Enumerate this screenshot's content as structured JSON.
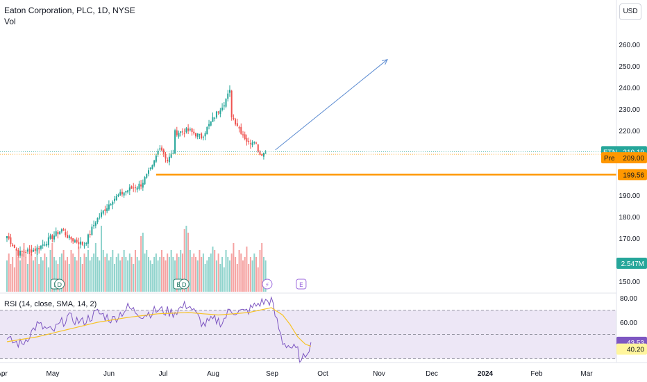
{
  "header": {
    "title": "Eaton Corporation, PLC, 1D, NYSE",
    "volume_label": "Vol",
    "currency": "USD",
    "rsi_label": "RSI (14, close, SMA, 14, 2)"
  },
  "colors": {
    "up": "#26a69a",
    "down": "#ef5350",
    "vol_up": "#8fd3cc",
    "vol_down": "#f5a3a2",
    "support": "#ff9800",
    "arrow": "#5b8bd1",
    "rsi_line": "#7e57c2",
    "rsi_ma": "#f7c325",
    "rsi_band": "#ede7f6",
    "axis_text": "#131722",
    "grid_dash": "#787b86"
  },
  "chart_data": [
    {
      "type": "candlestick",
      "title": "Eaton Corporation, PLC, 1D, NYSE",
      "ylim": [
        145,
        265
      ],
      "y_ticks": [
        "260.00",
        "250.00",
        "240.00",
        "230.00",
        "220.00",
        "210.00",
        "190.00",
        "180.00",
        "170.00",
        "160.00",
        "150.00"
      ],
      "x_ticks": [
        "Apr",
        "May",
        "Jun",
        "Jul",
        "Aug",
        "Sep",
        "Oct",
        "Nov",
        "Dec",
        "2024",
        "Feb",
        "Mar"
      ],
      "waypoints": [
        {
          "date": "2023-03-29",
          "price": 171
        },
        {
          "date": "2023-04-06",
          "price": 163
        },
        {
          "date": "2023-04-20",
          "price": 165
        },
        {
          "date": "2023-05-01",
          "price": 170
        },
        {
          "date": "2023-05-09",
          "price": 174
        },
        {
          "date": "2023-05-15",
          "price": 170
        },
        {
          "date": "2023-05-25",
          "price": 167
        },
        {
          "date": "2023-06-02",
          "price": 178
        },
        {
          "date": "2023-06-15",
          "price": 188
        },
        {
          "date": "2023-06-26",
          "price": 192
        },
        {
          "date": "2023-07-06",
          "price": 195
        },
        {
          "date": "2023-07-14",
          "price": 203
        },
        {
          "date": "2023-07-20",
          "price": 213
        },
        {
          "date": "2023-07-26",
          "price": 206
        },
        {
          "date": "2023-07-31",
          "price": 210
        },
        {
          "date": "2023-08-01",
          "price": 219
        },
        {
          "date": "2023-08-10",
          "price": 220
        },
        {
          "date": "2023-08-21",
          "price": 217
        },
        {
          "date": "2023-08-31",
          "price": 228
        },
        {
          "date": "2023-09-06",
          "price": 233
        },
        {
          "date": "2023-09-11",
          "price": 238
        },
        {
          "date": "2023-09-12",
          "price": 227
        },
        {
          "date": "2023-09-18",
          "price": 221
        },
        {
          "date": "2023-09-25",
          "price": 214
        },
        {
          "date": "2023-09-28",
          "price": 216
        },
        {
          "date": "2023-10-03",
          "price": 209
        },
        {
          "date": "2023-10-06",
          "price": 210
        }
      ],
      "volume_ratios": [
        0.45,
        0.55,
        0.4,
        0.5,
        0.35,
        0.6,
        0.5,
        0.45,
        0.55,
        0.7,
        0.5,
        0.4,
        0.6,
        0.55,
        0.45,
        0.5,
        0.65,
        0.4,
        0.5,
        0.45,
        0.55,
        0.5,
        0.35,
        0.6,
        0.7,
        0.5,
        0.45,
        0.4,
        0.5,
        0.55,
        0.6,
        0.45,
        0.5,
        0.4,
        0.6,
        0.55,
        0.5,
        0.45,
        0.65,
        0.5,
        0.4,
        0.55,
        0.5,
        0.6,
        0.45,
        0.5,
        0.55,
        0.7,
        0.5,
        0.45,
        0.95,
        0.6,
        0.5,
        0.55,
        0.45,
        0.5,
        0.6,
        0.4,
        0.5,
        0.55,
        0.45,
        0.5,
        0.6,
        0.5,
        0.45,
        0.55,
        0.5,
        0.4,
        0.6,
        0.5,
        0.45,
        0.8,
        0.85,
        0.55,
        0.6,
        0.5,
        0.45,
        0.4,
        0.5,
        0.55,
        0.45,
        0.5,
        0.6,
        0.5,
        0.45,
        0.55,
        0.5,
        0.6,
        0.5,
        0.45,
        0.55,
        0.5,
        0.6,
        0.55,
        0.9,
        0.95,
        0.85,
        0.6,
        0.5,
        0.55,
        0.5,
        0.45,
        0.6,
        0.5,
        0.55,
        0.4,
        0.45,
        0.5,
        0.55,
        0.65,
        0.6
      ],
      "current_price": {
        "symbol": "ETN",
        "value": "210.19"
      },
      "premarket": {
        "label": "Pre",
        "value": "209.00"
      },
      "support_level": {
        "value": "199.56",
        "start_date": "2023-07-18"
      },
      "projection_arrow": {
        "from": {
          "date": "2023-10-06",
          "price": 211
        },
        "to": {
          "date": "2023-11-01",
          "price": 253
        }
      },
      "volume_value": "2.547M",
      "earnings_markers": [
        {
          "date": "2023-05-02",
          "label": "E"
        },
        {
          "date": "2023-05-04",
          "label": "D"
        },
        {
          "date": "2023-08-01",
          "label": "E"
        },
        {
          "date": "2023-08-04",
          "label": "D"
        },
        {
          "date": "2023-10-05",
          "label": "⚡"
        },
        {
          "date": "2023-10-31",
          "label": "E"
        }
      ]
    },
    {
      "type": "line",
      "title": "RSI (14, close, SMA, 14, 2)",
      "ylim": [
        20,
        83
      ],
      "y_ticks": [
        "80.00",
        "60.00"
      ],
      "band": [
        30,
        70
      ],
      "rsi_value": "43.53",
      "rsi_ma_value": "40.20",
      "rsi_waypoints": [
        [
          0,
          45
        ],
        [
          8,
          42
        ],
        [
          16,
          58
        ],
        [
          24,
          52
        ],
        [
          32,
          64
        ],
        [
          40,
          60
        ],
        [
          48,
          68
        ],
        [
          56,
          62
        ],
        [
          64,
          72
        ],
        [
          72,
          66
        ],
        [
          80,
          70
        ],
        [
          88,
          68
        ],
        [
          96,
          75
        ],
        [
          104,
          58
        ],
        [
          110,
          62
        ],
        [
          114,
          60
        ],
        [
          118,
          70
        ],
        [
          126,
          68
        ],
        [
          134,
          76
        ],
        [
          140,
          78
        ],
        [
          142,
          66
        ],
        [
          146,
          44
        ],
        [
          150,
          40
        ],
        [
          154,
          36
        ],
        [
          156,
          26
        ],
        [
          158,
          34
        ],
        [
          160,
          40
        ],
        [
          161,
          43.5
        ]
      ],
      "ma_waypoints": [
        [
          0,
          44
        ],
        [
          16,
          48
        ],
        [
          32,
          54
        ],
        [
          48,
          60
        ],
        [
          64,
          64
        ],
        [
          80,
          67
        ],
        [
          96,
          68
        ],
        [
          112,
          66
        ],
        [
          128,
          68
        ],
        [
          140,
          72
        ],
        [
          146,
          66
        ],
        [
          150,
          58
        ],
        [
          154,
          48
        ],
        [
          158,
          42
        ],
        [
          161,
          40.2
        ]
      ]
    }
  ]
}
